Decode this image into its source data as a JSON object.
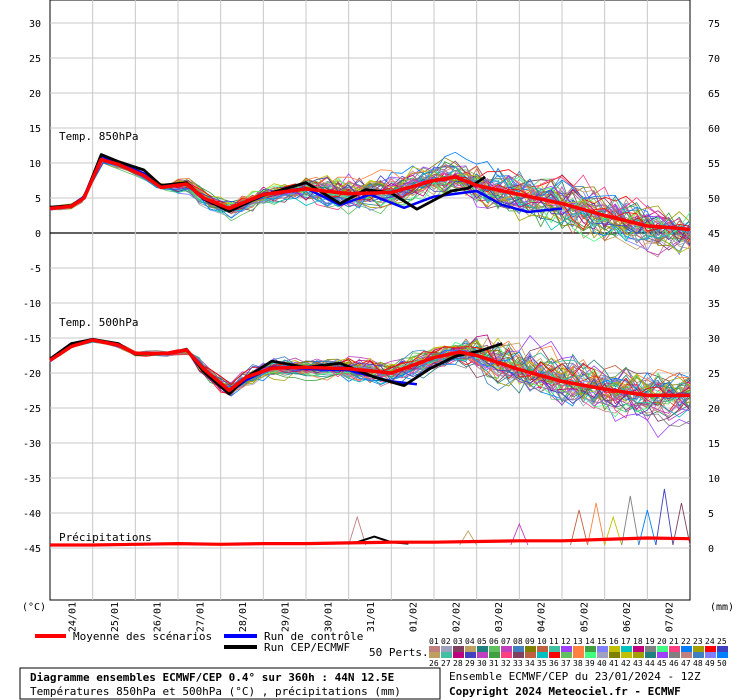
{
  "chart_data": {
    "type": "line",
    "left_axis_ticks": [
      30,
      25,
      20,
      15,
      10,
      5,
      0,
      -5,
      -10,
      -15,
      -20,
      -25,
      -30,
      -35,
      -40,
      -45
    ],
    "right_axis_ticks": [
      75,
      70,
      65,
      60,
      55,
      50,
      45,
      40,
      35,
      30,
      25,
      20,
      15,
      10,
      5,
      0
    ],
    "left_unit": "(°C)",
    "right_unit": "(mm)",
    "x_dates": [
      "24/01",
      "25/01",
      "26/01",
      "27/01",
      "28/01",
      "29/01",
      "30/01",
      "31/01",
      "01/02",
      "02/02",
      "03/02",
      "04/02",
      "05/02",
      "06/02",
      "07/02"
    ],
    "x_day_start": 0,
    "x_day_end": 15,
    "panels": {
      "t850": {
        "label": "Temp. 850hPa",
        "mean": [
          [
            0,
            3.5
          ],
          [
            0.5,
            3.8
          ],
          [
            0.8,
            5
          ],
          [
            1.2,
            10.5
          ],
          [
            1.6,
            9.8
          ],
          [
            2.2,
            8.2
          ],
          [
            2.6,
            6.5
          ],
          [
            3.2,
            7
          ],
          [
            3.6,
            5
          ],
          [
            4.2,
            3.5
          ],
          [
            5,
            5.5
          ],
          [
            6,
            6.3
          ],
          [
            7,
            5.6
          ],
          [
            8,
            5.8
          ],
          [
            9,
            7.5
          ],
          [
            9.5,
            8
          ],
          [
            10,
            6.8
          ],
          [
            11,
            5.5
          ],
          [
            12,
            4.2
          ],
          [
            13,
            2.5
          ],
          [
            14,
            1
          ],
          [
            14.5,
            0.8
          ],
          [
            15,
            0.5
          ]
        ],
        "control": [
          [
            0,
            3.6
          ],
          [
            0.5,
            3.9
          ],
          [
            0.8,
            5.2
          ],
          [
            1.2,
            11
          ],
          [
            1.6,
            10
          ],
          [
            2.2,
            8.5
          ],
          [
            2.6,
            6.6
          ],
          [
            3.2,
            7.1
          ],
          [
            3.6,
            4.8
          ],
          [
            4.2,
            3.2
          ],
          [
            5,
            5.6
          ],
          [
            6,
            6.4
          ],
          [
            6.8,
            4
          ],
          [
            7.5,
            5.5
          ],
          [
            8.3,
            3.6
          ],
          [
            9,
            5.2
          ],
          [
            10,
            6
          ],
          [
            10.6,
            4
          ],
          [
            11.2,
            3
          ],
          [
            12,
            3.5
          ]
        ],
        "ecmwf_run": [
          [
            0,
            3.7
          ],
          [
            0.5,
            3.9
          ],
          [
            0.8,
            5
          ],
          [
            1.2,
            11.2
          ],
          [
            1.6,
            10.2
          ],
          [
            2.2,
            9
          ],
          [
            2.6,
            6.8
          ],
          [
            3.2,
            7.2
          ],
          [
            3.6,
            4.9
          ],
          [
            4.2,
            3.1
          ],
          [
            5,
            5.4
          ],
          [
            6,
            7.2
          ],
          [
            6.8,
            4.2
          ],
          [
            7.4,
            6.2
          ],
          [
            8,
            5.7
          ],
          [
            8.6,
            3.4
          ],
          [
            9.4,
            6
          ],
          [
            9.8,
            6.4
          ],
          [
            10.2,
            8
          ]
        ]
      },
      "t500": {
        "label": "Temp. 500hPa",
        "mean": [
          [
            0,
            -18.2
          ],
          [
            0.5,
            -16.2
          ],
          [
            1,
            -15.3
          ],
          [
            1.6,
            -16
          ],
          [
            2,
            -17.2
          ],
          [
            2.8,
            -17.2
          ],
          [
            3.2,
            -16.7
          ],
          [
            3.6,
            -19.4
          ],
          [
            4.2,
            -22.5
          ],
          [
            4.6,
            -20.6
          ],
          [
            5.2,
            -19.3
          ],
          [
            6,
            -19.2
          ],
          [
            7,
            -19.4
          ],
          [
            8,
            -20
          ],
          [
            9,
            -17.8
          ],
          [
            9.6,
            -17
          ],
          [
            10,
            -17.5
          ],
          [
            11,
            -19.5
          ],
          [
            12,
            -21.2
          ],
          [
            13,
            -22.3
          ],
          [
            14,
            -23.2
          ],
          [
            15,
            -23.2
          ]
        ],
        "control": [
          [
            0,
            -18.2
          ],
          [
            0.5,
            -16
          ],
          [
            1,
            -15.2
          ],
          [
            1.6,
            -16
          ],
          [
            2,
            -17.3
          ],
          [
            2.8,
            -17.2
          ],
          [
            3.2,
            -16.6
          ],
          [
            3.6,
            -19.6
          ],
          [
            4.2,
            -22.8
          ],
          [
            4.6,
            -21
          ],
          [
            5.2,
            -19.2
          ],
          [
            6,
            -19.4
          ],
          [
            7,
            -19.6
          ],
          [
            8,
            -21.2
          ],
          [
            8.6,
            -21.6
          ]
        ],
        "ecmwf_run": [
          [
            0,
            -18
          ],
          [
            0.5,
            -15.8
          ],
          [
            1,
            -15.2
          ],
          [
            1.6,
            -15.8
          ],
          [
            2,
            -17.3
          ],
          [
            2.8,
            -17.2
          ],
          [
            3.2,
            -16.6
          ],
          [
            3.6,
            -19.8
          ],
          [
            4.2,
            -23
          ],
          [
            4.6,
            -20.6
          ],
          [
            5.2,
            -18.3
          ],
          [
            6,
            -19.2
          ],
          [
            6.8,
            -18.6
          ],
          [
            7.6,
            -20.6
          ],
          [
            8.3,
            -21.8
          ],
          [
            8.9,
            -19.4
          ],
          [
            9.5,
            -17.6
          ],
          [
            10.1,
            -16.8
          ],
          [
            10.6,
            -15.8
          ]
        ]
      },
      "precip": {
        "label": "Précipitations",
        "mean": [
          [
            0,
            0
          ],
          [
            1,
            0
          ],
          [
            2,
            0.1
          ],
          [
            3,
            0.2
          ],
          [
            4,
            0.1
          ],
          [
            5,
            0.2
          ],
          [
            6,
            0.2
          ],
          [
            7,
            0.3
          ],
          [
            8,
            0.4
          ],
          [
            9,
            0.4
          ],
          [
            10,
            0.5
          ],
          [
            11,
            0.6
          ],
          [
            12,
            0.6
          ],
          [
            13,
            0.8
          ],
          [
            14,
            1
          ],
          [
            15,
            0.9
          ]
        ],
        "ecmwf_run": [
          [
            6.6,
            0.2
          ],
          [
            7.2,
            0.4
          ],
          [
            7.6,
            1.2
          ],
          [
            8.0,
            0.4
          ],
          [
            8.4,
            0.2
          ]
        ],
        "member_spikes_day": [
          7.2,
          9.8,
          11.0,
          12.4,
          12.8,
          13.2,
          13.6,
          14.0,
          14.4,
          14.8
        ],
        "member_spikes_mm": [
          4,
          2,
          3,
          5,
          6,
          4,
          7,
          5,
          8,
          6
        ]
      }
    },
    "members": {
      "count": 50,
      "label": "50 Perts."
    }
  },
  "legend": {
    "mean": "Moyenne des scénarios",
    "control": "Run de contrôle",
    "ecmwf": "Run CEP/ECMWF",
    "mean_color": "#ff0000",
    "control_color": "#0000ff",
    "ecmwf_color": "#000000"
  },
  "members_row1": [
    "01",
    "02",
    "03",
    "04",
    "05",
    "06",
    "07",
    "08",
    "09",
    "10",
    "11",
    "12",
    "13",
    "14",
    "15",
    "16",
    "17",
    "18",
    "19",
    "20",
    "21",
    "22",
    "23",
    "24",
    "25"
  ],
  "members_row2": [
    "26",
    "27",
    "28",
    "29",
    "30",
    "31",
    "32",
    "33",
    "34",
    "35",
    "36",
    "37",
    "38",
    "39",
    "40",
    "41",
    "42",
    "43",
    "44",
    "45",
    "46",
    "47",
    "48",
    "49",
    "50"
  ],
  "member_colors": [
    "#c08080",
    "#a0a0c0",
    "#804060",
    "#c0a060",
    "#208080",
    "#60c060",
    "#c040c0",
    "#4080c0",
    "#808000",
    "#c06040",
    "#40c0a0",
    "#a040ff",
    "#ff8040",
    "#40a040",
    "#8080ff",
    "#c0c000",
    "#00c0c0",
    "#c00080",
    "#808080",
    "#40ff80",
    "#ff4080",
    "#0080ff",
    "#a0a000",
    "#ff0000",
    "#4040c0"
  ],
  "footer": {
    "title": "Diagramme ensembles ECMWF/CEP 0.4° sur 360h : 44N 12.5E",
    "subtitle": "Températures 850hPa et 500hPa (°C) , précipitations (mm)",
    "run": "Ensemble ECMWF/CEP du 23/01/2024 - 12Z",
    "copyright": "Copyright 2024 Meteociel.fr - ECMWF"
  }
}
